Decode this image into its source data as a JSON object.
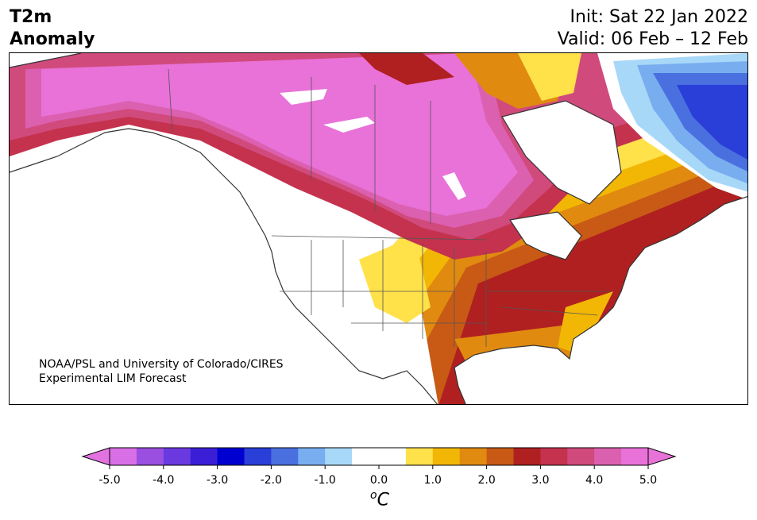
{
  "title": {
    "left_line1": "T2m",
    "left_line2": "Anomaly",
    "right_line1": "Init: Sat 22 Jan 2022",
    "right_line2": "Valid: 06 Feb – 12 Feb"
  },
  "credit": {
    "line1": "NOAA/PSL and University of Colorado/CIRES",
    "line2": "Experimental LIM Forecast"
  },
  "colorbar": {
    "unit_sup": "o",
    "unit_main": "C",
    "ticks": [
      "-5.0",
      "-4.0",
      "-3.0",
      "-2.0",
      "-1.0",
      "0.0",
      "1.0",
      "2.0",
      "3.0",
      "4.0",
      "5.0"
    ],
    "colors": [
      "#d96fe6",
      "#9b4fe0",
      "#6a3ae0",
      "#3a1fd6",
      "#0000d0",
      "#2a3ed8",
      "#4a70e0",
      "#78aef0",
      "#a8d8f8",
      "#ffffff",
      "#ffffff",
      "#ffe14a",
      "#f2b705",
      "#e08a10",
      "#c85a15",
      "#b02020",
      "#c4324e",
      "#d14a7c",
      "#dc60b0",
      "#e872d8"
    ],
    "under_color": "#e272e0",
    "over_color": "#e872d8"
  }
}
